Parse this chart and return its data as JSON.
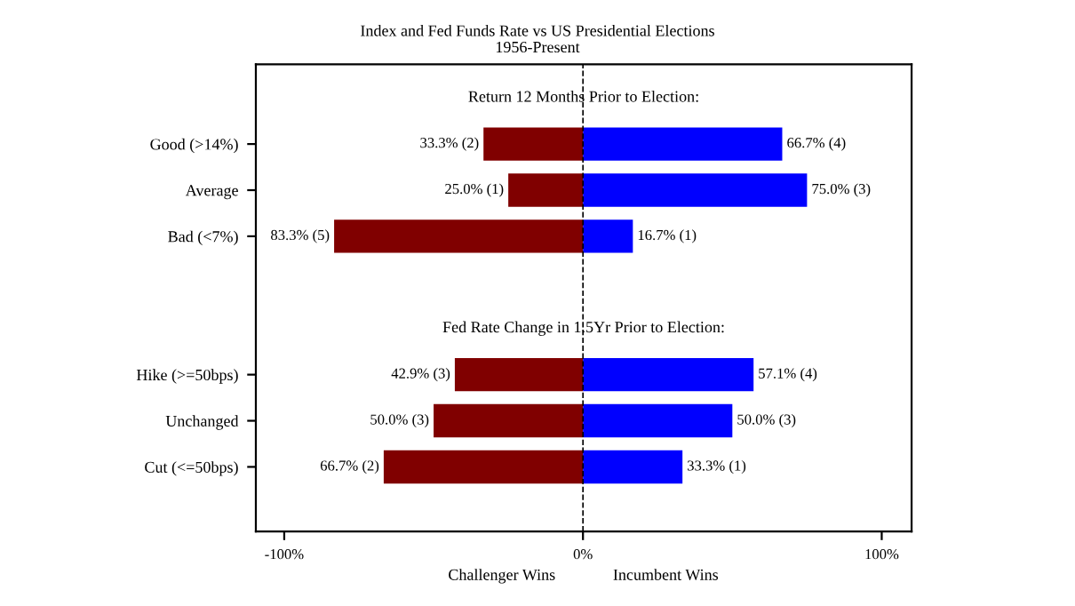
{
  "chart_data": {
    "type": "bar",
    "orientation": "horizontal",
    "title": "Index and Fed Funds Rate vs US Presidential Elections",
    "subtitle": "1956-Present",
    "categories": [
      null,
      "Good (>14%)",
      "Average",
      "Bad (<7%)",
      null,
      null,
      "Hike (>=50bps)",
      "Unchanged",
      "Cut (<=50bps)"
    ],
    "series": [
      {
        "color": "#800000",
        "values": [
          null,
          33.3,
          25.0,
          83.3,
          null,
          null,
          42.9,
          50.0,
          66.7
        ],
        "base": [
          null,
          -33.3,
          -25.0,
          -83.3,
          null,
          null,
          -42.9,
          -50.0,
          -66.7
        ],
        "value_labels": [
          null,
          "33.3% (2)",
          "25.0% (1)",
          "83.3% (5)",
          null,
          null,
          "42.9% (3)",
          "50.0% (3)",
          "66.7% (2)"
        ]
      },
      {
        "color": "#0000ff",
        "values": [
          null,
          66.7,
          75.0,
          16.7,
          null,
          null,
          57.1,
          50.0,
          33.3
        ],
        "value_labels": [
          null,
          "66.7% (4)",
          "75.0% (3)",
          "16.7% (1)",
          null,
          null,
          "57.1% (4)",
          "50.0% (3)",
          "33.3% (1)"
        ]
      }
    ],
    "annotations": [
      "Return 12 Months Prior to Election:",
      "Fed Rate Change in 1.5Yr Prior to Election:",
      "Challenger Wins",
      "Incumbent Wins"
    ],
    "xlim": [
      -109.5,
      110
    ],
    "xticks": [
      {
        "value": -100,
        "label": "-100%"
      },
      {
        "value": 0,
        "label": "0%"
      },
      {
        "value": 100,
        "label": "100%"
      }
    ],
    "ref_lines": [
      {
        "axis": "x",
        "value": 0,
        "color": "#000000",
        "line_style": "dashed"
      }
    ],
    "grid": false,
    "legend": false
  }
}
